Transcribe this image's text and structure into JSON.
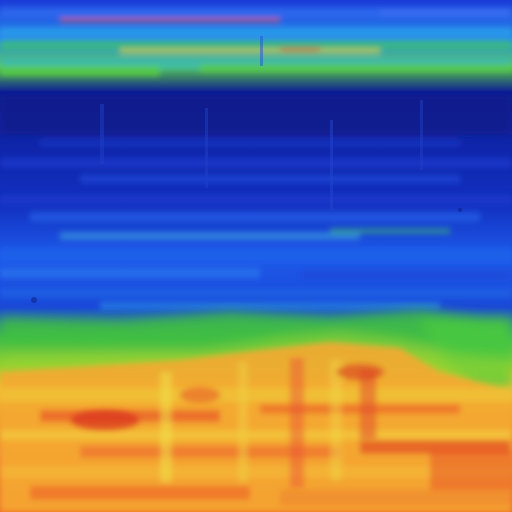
{
  "palette": {
    "deep_blue": "#0a1a8c",
    "royal_blue": "#1432d2",
    "bright_blue": "#1e64f0",
    "cyan": "#28b4e6",
    "green": "#3cc83c",
    "lime": "#a0dc28",
    "yellow": "#f0dc28",
    "orange": "#f5a028",
    "red_orange": "#f05028",
    "red": "#d22814"
  }
}
